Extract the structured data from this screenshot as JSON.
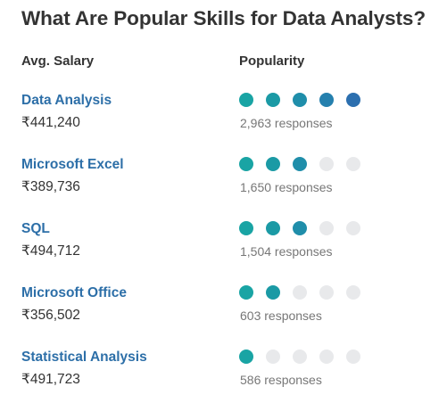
{
  "title": "What Are Popular Skills for Data Analysts?",
  "columns": {
    "salary": "Avg. Salary",
    "popularity": "Popularity"
  },
  "colors": {
    "dot_empty": "#e8e9eb",
    "dot_levels": [
      "#19a4a4",
      "#1b9aa5",
      "#1f8eaa",
      "#2580ae",
      "#2c6faf"
    ]
  },
  "skills": [
    {
      "name": "Data Analysis",
      "salary": "₹441,240",
      "responses": "2,963 responses",
      "popularity": 5
    },
    {
      "name": "Microsoft Excel",
      "salary": "₹389,736",
      "responses": "1,650 responses",
      "popularity": 3
    },
    {
      "name": "SQL",
      "salary": "₹494,712",
      "responses": "1,504 responses",
      "popularity": 3
    },
    {
      "name": "Microsoft Office",
      "salary": "₹356,502",
      "responses": "603 responses",
      "popularity": 2
    },
    {
      "name": "Statistical Analysis",
      "salary": "₹491,723",
      "responses": "586 responses",
      "popularity": 1
    }
  ]
}
